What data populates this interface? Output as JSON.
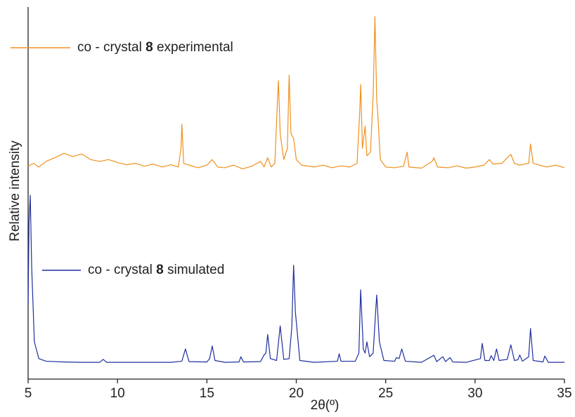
{
  "chart_data": {
    "type": "line",
    "x_label": "2θ(º)",
    "y_label": "Relative intensity",
    "xlim": [
      5,
      35
    ],
    "xticks": [
      5,
      10,
      15,
      20,
      25,
      30,
      35
    ],
    "ylim": [
      0,
      100
    ],
    "series": [
      {
        "name": "co - crystal 8 experimental",
        "color": "#f0901e",
        "x": [
          5,
          5.3,
          5.6,
          6,
          6.5,
          7,
          7.5,
          8,
          8.5,
          9,
          9.5,
          10,
          10.5,
          11,
          11.5,
          12,
          12.5,
          13,
          13.4,
          13.55,
          13.6,
          13.7,
          14,
          14.5,
          15,
          15.3,
          15.6,
          16,
          16.5,
          17,
          17.5,
          18,
          18.2,
          18.4,
          18.6,
          18.8,
          18.95,
          19.0,
          19.1,
          19.3,
          19.5,
          19.6,
          19.7,
          19.85,
          20.0,
          20.3,
          21,
          21.5,
          22,
          22.5,
          23,
          23.4,
          23.55,
          23.6,
          23.7,
          23.85,
          23.95,
          24.15,
          24.3,
          24.4,
          24.5,
          24.55,
          24.7,
          25,
          25.5,
          26,
          26.2,
          26.3,
          27,
          27.6,
          27.7,
          27.9,
          28.5,
          29,
          29.5,
          30,
          30.5,
          30.8,
          31,
          31.5,
          32,
          32.2,
          32.5,
          33,
          33.1,
          33.25,
          33.6,
          34,
          34.5,
          35
        ],
        "values": [
          57.2,
          58,
          57,
          58.5,
          59.5,
          60.7,
          59.8,
          60.5,
          59,
          58.5,
          59,
          58.2,
          57.6,
          58,
          57.2,
          57.8,
          57,
          57.6,
          57,
          62,
          68.5,
          58,
          57.5,
          56.8,
          57.5,
          59,
          57,
          56.8,
          57.5,
          56.5,
          57.2,
          58.5,
          57,
          59.5,
          57,
          58,
          75,
          80.2,
          66,
          59,
          62,
          81.7,
          66,
          64.7,
          59,
          57.5,
          57,
          57.5,
          56.8,
          57.3,
          57,
          58,
          72,
          79.2,
          62,
          68,
          60,
          61,
          76.4,
          97.4,
          75,
          72,
          59,
          57,
          56.8,
          57.2,
          61,
          57,
          56.7,
          58.5,
          59.5,
          57,
          56.8,
          57.3,
          56.7,
          57,
          57.5,
          59,
          57.8,
          58,
          60.4,
          58,
          57.5,
          58,
          63.2,
          58,
          57.5,
          57,
          57.5,
          56.8
        ]
      },
      {
        "name": "co - crystal 8 simulated",
        "color": "#1f2f9f",
        "x": [
          5.0,
          5.05,
          5.12,
          5.2,
          5.35,
          5.6,
          6,
          7,
          8,
          9,
          9.2,
          9.4,
          10,
          11,
          12,
          13,
          13.6,
          13.8,
          14,
          15,
          15.15,
          15.3,
          15.45,
          16,
          16.8,
          16.9,
          17.05,
          18,
          18.2,
          18.3,
          18.4,
          18.55,
          18.9,
          19.1,
          19.3,
          19.6,
          19.75,
          19.85,
          19.95,
          20.2,
          21,
          22.3,
          22.4,
          22.5,
          23.3,
          23.5,
          23.6,
          23.75,
          23.85,
          23.95,
          24.1,
          24.3,
          24.45,
          24.5,
          24.65,
          24.9,
          25.5,
          25.6,
          25.75,
          25.9,
          26.1,
          27,
          27.7,
          27.85,
          28.2,
          28.35,
          28.6,
          28.75,
          29.5,
          30.3,
          30.4,
          30.55,
          30.8,
          30.9,
          31.05,
          31.2,
          31.35,
          31.8,
          32,
          32.2,
          32.4,
          32.5,
          32.65,
          33,
          33.1,
          33.25,
          33.8,
          33.9,
          34.1,
          35
        ],
        "values": [
          20,
          42,
          49.4,
          30,
          10,
          5.5,
          4.8,
          4.6,
          4.5,
          4.5,
          5.3,
          4.5,
          4.5,
          4.5,
          4.5,
          4.5,
          4.8,
          8.1,
          4.7,
          4.6,
          5.5,
          8.9,
          5,
          4.5,
          4.6,
          6,
          4.6,
          4.7,
          6.5,
          7,
          12,
          5.5,
          5,
          14.3,
          5.3,
          5.5,
          14,
          30.6,
          18,
          5,
          4.5,
          4.8,
          6.8,
          4.8,
          4.8,
          7,
          24,
          8,
          7,
          10,
          6,
          7,
          19,
          22.6,
          10,
          5,
          4.8,
          5.8,
          5.5,
          8.1,
          4.8,
          4.5,
          6.4,
          4.7,
          6,
          4.7,
          5.8,
          4.6,
          4.5,
          5.5,
          9.6,
          5,
          5,
          6.3,
          5,
          8.1,
          5,
          5.3,
          9.2,
          5,
          5.2,
          6.5,
          4.8,
          6,
          13.6,
          5,
          4.6,
          6.2,
          4.5,
          4.5
        ]
      }
    ]
  }
}
